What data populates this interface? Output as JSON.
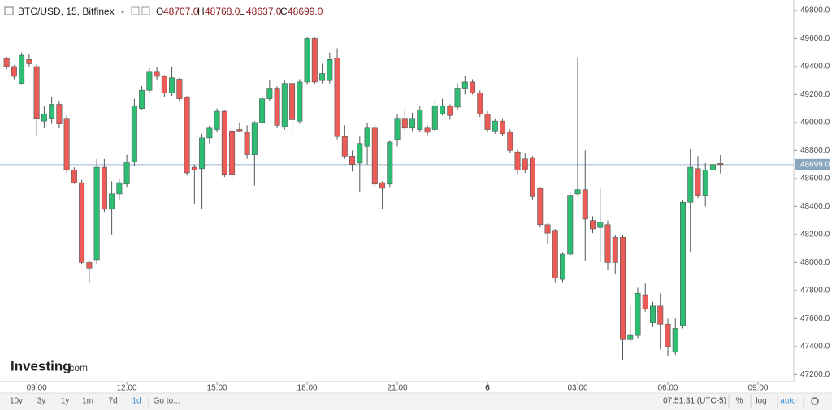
{
  "chart_data": {
    "type": "candlestick",
    "title": "BTC/USD, 15, Bitfinex",
    "ohlc_header": [
      {
        "label": "O",
        "value": "48707.0"
      },
      {
        "label": "H",
        "value": "48768.0"
      },
      {
        "label": "L",
        "value": "48637.0"
      },
      {
        "label": "C",
        "value": "48699.0"
      }
    ],
    "x": [
      8,
      8.25,
      8.5,
      8.75,
      9,
      9.25,
      9.5,
      9.75,
      10,
      10.25,
      10.5,
      10.75,
      11,
      11.25,
      11.5,
      11.75,
      12,
      12.25,
      12.5,
      12.75,
      13,
      13.25,
      13.5,
      13.75,
      14,
      14.25,
      14.5,
      14.75,
      15,
      15.25,
      15.5,
      15.75,
      16,
      16.25,
      16.5,
      16.75,
      17,
      17.25,
      17.5,
      17.75,
      18,
      18.25,
      18.5,
      18.75,
      19,
      19.25,
      19.5,
      19.75,
      20,
      20.25,
      20.5,
      20.75,
      21,
      21.25,
      21.5,
      21.75,
      22,
      22.25,
      22.5,
      22.75,
      23,
      23.25,
      23.5,
      23.75,
      24,
      24.25,
      24.5,
      24.75,
      25,
      25.25,
      25.5,
      25.75,
      26,
      26.25,
      26.5,
      26.75,
      27,
      27.25,
      27.5,
      27.75,
      28,
      28.25,
      28.5,
      28.75,
      29,
      29.25,
      29.5,
      29.75,
      30,
      30.25,
      30.5,
      30.75,
      31,
      31.25,
      31.5,
      31.75
    ],
    "open": [
      49458,
      49400,
      49280,
      49450,
      49400,
      49010,
      49030,
      49130,
      49030,
      48660,
      48570,
      48000,
      48020,
      48680,
      48380,
      48490,
      48560,
      48720,
      49100,
      49230,
      49360,
      49330,
      49210,
      49310,
      49180,
      48680,
      48670,
      48890,
      48950,
      49080,
      48940,
      48950,
      48930,
      48770,
      49000,
      49170,
      49240,
      48970,
      49280,
      49010,
      49290,
      49600,
      49300,
      49300,
      49460,
      48900,
      48760,
      48710,
      48830,
      48960,
      48570,
      48560,
      48880,
      49030,
      48960,
      48950,
      48960,
      48950,
      49060,
      49120,
      49110,
      49240,
      49290,
      49210,
      49060,
      48940,
      49010,
      48930,
      48790,
      48740,
      48750,
      48530,
      48270,
      48230,
      47880,
      48060,
      48490,
      48520,
      48300,
      48250,
      48270,
      48180,
      48180,
      47450,
      47480,
      47770,
      47570,
      47690,
      47560,
      47360,
      47550,
      48430,
      48670,
      48480,
      48660,
      48707
    ],
    "high": [
      49470,
      49410,
      49500,
      49490,
      49420,
      49120,
      49180,
      49150,
      49050,
      48680,
      48590,
      48020,
      48740,
      48740,
      48580,
      48600,
      48770,
      49170,
      49260,
      49390,
      49400,
      49340,
      49400,
      49320,
      49190,
      48700,
      48920,
      48980,
      49100,
      49090,
      48950,
      49000,
      48980,
      49010,
      49200,
      49300,
      49260,
      49300,
      49300,
      49310,
      49610,
      49610,
      49420,
      49500,
      49530,
      48980,
      48800,
      48900,
      49000,
      48990,
      48580,
      48870,
      49060,
      49100,
      49070,
      49120,
      48980,
      49150,
      49170,
      49130,
      49280,
      49330,
      49310,
      49230,
      49080,
      49030,
      49030,
      48950,
      48810,
      48780,
      48760,
      48540,
      48280,
      48240,
      48070,
      48500,
      49460,
      48800,
      48330,
      48530,
      48300,
      48200,
      48200,
      47690,
      47820,
      47850,
      47720,
      47780,
      47600,
      47600,
      48450,
      48810,
      48760,
      48710,
      48850,
      48768
    ],
    "low": [
      49380,
      49310,
      49270,
      49400,
      48900,
      48960,
      48990,
      48960,
      48640,
      48560,
      47990,
      47860,
      47990,
      48360,
      48200,
      48450,
      48540,
      48690,
      49090,
      49210,
      49300,
      49180,
      49190,
      49150,
      48620,
      48420,
      48380,
      48850,
      48930,
      48610,
      48600,
      48930,
      48740,
      48550,
      48980,
      49150,
      48960,
      48950,
      48920,
      48990,
      49270,
      49270,
      49280,
      49280,
      48880,
      48740,
      48650,
      48500,
      48700,
      48540,
      48380,
      48540,
      48830,
      48940,
      48940,
      48930,
      48910,
      48930,
      49050,
      49020,
      49090,
      49200,
      49200,
      49040,
      48930,
      48920,
      48900,
      48780,
      48630,
      48640,
      48450,
      48250,
      48130,
      47860,
      47860,
      48040,
      48470,
      48010,
      48210,
      48000,
      47950,
      47920,
      47300,
      47440,
      47460,
      47650,
      47540,
      47380,
      47330,
      47340,
      47530,
      48070,
      48460,
      48400,
      48620,
      48637
    ],
    "close": [
      49400,
      49330,
      49480,
      49420,
      49030,
      49060,
      49130,
      48990,
      48660,
      48570,
      48000,
      47960,
      48680,
      48380,
      48490,
      48570,
      48720,
      49120,
      49230,
      49360,
      49330,
      49210,
      49320,
      49170,
      48640,
      48660,
      48890,
      48960,
      49080,
      48630,
      48630,
      48940,
      48770,
      49000,
      49170,
      49240,
      48980,
      49280,
      49020,
      49290,
      49600,
      49290,
      49350,
      49450,
      48900,
      48760,
      48700,
      48850,
      48960,
      48560,
      48530,
      48860,
      49030,
      48960,
      49030,
      49090,
      48930,
      49120,
      49120,
      49050,
      49240,
      49290,
      49210,
      49060,
      48950,
      49010,
      48920,
      48800,
      48660,
      48660,
      48470,
      48270,
      48210,
      47890,
      48060,
      48480,
      48520,
      48310,
      48240,
      48290,
      48000,
      48000,
      47450,
      47480,
      47780,
      47670,
      47690,
      47560,
      47400,
      47530,
      48430,
      48680,
      48480,
      48660,
      48700,
      48699
    ],
    "up_color": "#2ebd72",
    "down_color": "#ec5b56",
    "xlim": [
      7.78,
      34.19
    ],
    "xticks": [
      {
        "value": 9,
        "label": "09:00"
      },
      {
        "value": 12,
        "label": "12:00"
      },
      {
        "value": 15,
        "label": "15:00"
      },
      {
        "value": 18,
        "label": "18:00"
      },
      {
        "value": 21,
        "label": "21:00"
      },
      {
        "value": 24,
        "label": "6"
      },
      {
        "value": 27,
        "label": "03:00"
      },
      {
        "value": 30,
        "label": "06:00"
      },
      {
        "value": 33,
        "label": "09:00"
      }
    ],
    "ylim": [
      47150,
      49875
    ],
    "yticks": [
      {
        "value": 47200,
        "label": "47200.0"
      },
      {
        "value": 47400,
        "label": "47400.0"
      },
      {
        "value": 47600,
        "label": "47600.0"
      },
      {
        "value": 47800,
        "label": "47800.0"
      },
      {
        "value": 48000,
        "label": "48000.0"
      },
      {
        "value": 48200,
        "label": "48200.0"
      },
      {
        "value": 48400,
        "label": "48400.0"
      },
      {
        "value": 48600,
        "label": "48600.0"
      },
      {
        "value": 48800,
        "label": "48800.0"
      },
      {
        "value": 49000,
        "label": "49000.0"
      },
      {
        "value": 49200,
        "label": "49200.0"
      },
      {
        "value": 49400,
        "label": "49400.0"
      },
      {
        "value": 49600,
        "label": "49600.0"
      },
      {
        "value": 49800,
        "label": "49800.0"
      }
    ],
    "last_price": {
      "value": 48699,
      "label": "48699.0"
    },
    "grid": false,
    "watermark": {
      "brand": "Investing",
      "suffix": ".com"
    },
    "range_buttons": [
      "10y",
      "3y",
      "1y",
      "1m",
      "7d",
      "1d",
      "Go to..."
    ],
    "active_range": "1d",
    "clock": "07:51:31 (UTC-5)",
    "toggles": [
      "%",
      "log",
      "auto"
    ]
  }
}
